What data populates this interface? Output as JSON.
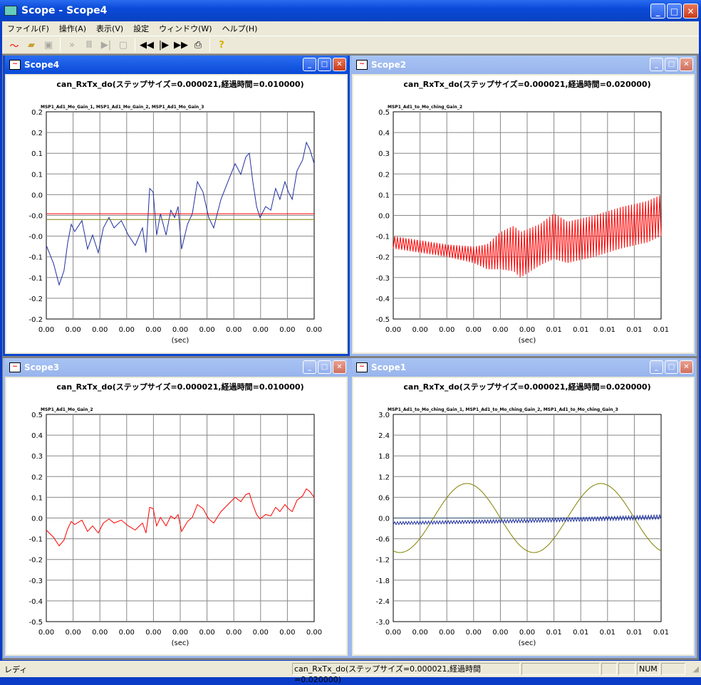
{
  "app": {
    "title": "Scope - Scope4"
  },
  "menu": [
    "ファイル(F)",
    "操作(A)",
    "表示(V)",
    "設定",
    "ウィンドウ(W)",
    "ヘルプ(H)"
  ],
  "toolbar": {
    "icons": [
      "scope-icon",
      "open-icon",
      "save-icon",
      "play-icon",
      "pause-icon",
      "step-icon",
      "stop-icon",
      "rewind-icon",
      "step-forward-icon",
      "fast-forward-icon",
      "print-icon",
      "help-icon"
    ]
  },
  "status": {
    "left": "レディ",
    "message": "can_RxTx_do(ステップサイズ=0.000021,経過時間=0.020000)",
    "num": "NUM"
  },
  "colors": {
    "blue": "#2030a0",
    "red": "#ff0000",
    "olive": "#808000"
  },
  "windows": [
    {
      "title": "Scope4",
      "active": true
    },
    {
      "title": "Scope2",
      "active": false
    },
    {
      "title": "Scope3",
      "active": false
    },
    {
      "title": "Scope1",
      "active": false
    }
  ],
  "chart_data": [
    {
      "type": "line",
      "window": "Scope4",
      "title": "can_RxTx_do(ステップサイズ=0.000021,経過時間=0.010000)",
      "legend": "MSP1_Ad1_Mo_Gain_1, MSP1_Ad1_Mo_Gain_2, MSP1_Ad1_Mo_Gain_3",
      "xlabel": "(sec)",
      "xlim": [
        0,
        0.01
      ],
      "ylim": [
        -0.2,
        0.2
      ],
      "yticks": [
        "0.2",
        "0.2",
        "0.1",
        "0.1",
        "0.0",
        "-0.0",
        "-0.0",
        "-0.1",
        "-0.1",
        "-0.2",
        "-0.2"
      ],
      "xticks": [
        "0.00",
        "0.00",
        "0.00",
        "0.00",
        "0.00",
        "0.00",
        "0.00",
        "0.00",
        "0.00",
        "0.00",
        "0.00"
      ],
      "series": [
        {
          "name": "Gain_1",
          "color": "#2030a0",
          "style": "line",
          "x": [
            0,
            0.00027,
            0.00048,
            0.00066,
            0.0008,
            0.00093,
            0.00106,
            0.00133,
            0.00154,
            0.00173,
            0.00194,
            0.00213,
            0.00234,
            0.00253,
            0.0028,
            0.00306,
            0.00332,
            0.00359,
            0.00372,
            0.00386,
            0.00399,
            0.00412,
            0.00426,
            0.00447,
            0.00465,
            0.00479,
            0.00492,
            0.00505,
            0.00527,
            0.00545,
            0.00564,
            0.00585,
            0.00606,
            0.00625,
            0.00638,
            0.00652,
            0.00678,
            0.00705,
            0.00726,
            0.00745,
            0.00758,
            0.00771,
            0.00785,
            0.00798,
            0.00819,
            0.00838,
            0.00856,
            0.00872,
            0.00891,
            0.00904,
            0.00918,
            0.00936,
            0.00957,
            0.00971,
            0.00984,
            0.01
          ],
          "y": [
            -0.058,
            -0.093,
            -0.134,
            -0.107,
            -0.052,
            -0.017,
            -0.031,
            -0.01,
            -0.065,
            -0.038,
            -0.072,
            -0.024,
            -0.004,
            -0.024,
            -0.01,
            -0.038,
            -0.058,
            -0.024,
            -0.072,
            0.052,
            0.045,
            -0.038,
            0.003,
            -0.038,
            0.01,
            -0.004,
            0.017,
            -0.065,
            -0.017,
            0.003,
            0.065,
            0.045,
            -0.004,
            -0.024,
            0.003,
            0.031,
            0.065,
            0.1,
            0.079,
            0.113,
            0.12,
            0.065,
            0.017,
            -0.004,
            0.017,
            0.01,
            0.052,
            0.031,
            0.065,
            0.045,
            0.031,
            0.086,
            0.107,
            0.141,
            0.127,
            0.1
          ]
        },
        {
          "name": "Gain_2",
          "color": "#ff0000",
          "style": "line",
          "x": [
            0,
            0.01
          ],
          "y": [
            0.003,
            0.003
          ]
        },
        {
          "name": "Gain_3",
          "color": "#808000",
          "style": "line",
          "x": [
            0,
            0.01
          ],
          "y": [
            -0.008,
            -0.008
          ]
        }
      ]
    },
    {
      "type": "line",
      "window": "Scope2",
      "title": "can_RxTx_do(ステップサイズ=0.000021,経過時間=0.020000)",
      "legend": "MSP1_Ad1_to_Mo_ching_Gain_2",
      "xlabel": "(sec)",
      "xlim": [
        0,
        0.02
      ],
      "ylim": [
        -0.5,
        0.5
      ],
      "yticks": [
        "0.5",
        "0.4",
        "0.3",
        "0.2",
        "0.1",
        "0.0",
        "-0.1",
        "-0.2",
        "-0.3",
        "-0.4",
        "-0.5"
      ],
      "xticks": [
        "0.00",
        "0.00",
        "0.00",
        "0.00",
        "0.00",
        "0.00",
        "0.01",
        "0.01",
        "0.01",
        "0.01",
        "0.01"
      ],
      "series": [
        {
          "name": "Gain_2",
          "color": "#ff0000",
          "style": "oscillation",
          "x": [
            0,
            0.002,
            0.004,
            0.006,
            0.007,
            0.008,
            0.009,
            0.0095,
            0.011,
            0.012,
            0.013,
            0.015,
            0.017,
            0.019,
            0.02
          ],
          "center": [
            -0.13,
            -0.15,
            -0.17,
            -0.19,
            -0.2,
            -0.17,
            -0.16,
            -0.19,
            -0.14,
            -0.1,
            -0.13,
            -0.1,
            -0.06,
            -0.03,
            -0.0
          ],
          "amplitude": [
            0.03,
            0.03,
            0.03,
            0.04,
            0.06,
            0.09,
            0.11,
            0.11,
            0.1,
            0.11,
            0.1,
            0.1,
            0.1,
            0.1,
            0.1
          ]
        }
      ]
    },
    {
      "type": "line",
      "window": "Scope3",
      "title": "can_RxTx_do(ステップサイズ=0.000021,経過時間=0.010000)",
      "legend": "MSP1_Ad1_Mo_Gain_2",
      "xlabel": "(sec)",
      "xlim": [
        0,
        0.01
      ],
      "ylim": [
        -0.5,
        0.5
      ],
      "yticks": [
        "0.5",
        "0.4",
        "0.3",
        "0.2",
        "0.1",
        "0.0",
        "-0.1",
        "-0.2",
        "-0.3",
        "-0.4",
        "-0.5"
      ],
      "xticks": [
        "0.00",
        "0.00",
        "0.00",
        "0.00",
        "0.00",
        "0.00",
        "0.00",
        "0.00",
        "0.00",
        "0.00",
        "0.00"
      ],
      "series": [
        {
          "name": "Gain_2",
          "color": "#ff0000",
          "style": "line",
          "x": [
            0,
            0.00027,
            0.00048,
            0.00066,
            0.0008,
            0.00093,
            0.00106,
            0.00133,
            0.00154,
            0.00173,
            0.00194,
            0.00213,
            0.00234,
            0.00253,
            0.0028,
            0.00306,
            0.00332,
            0.00359,
            0.00372,
            0.00386,
            0.00399,
            0.00412,
            0.00426,
            0.00447,
            0.00465,
            0.00479,
            0.00492,
            0.00505,
            0.00527,
            0.00545,
            0.00564,
            0.00585,
            0.00606,
            0.00625,
            0.00638,
            0.00652,
            0.00678,
            0.00705,
            0.00726,
            0.00745,
            0.00758,
            0.00771,
            0.00785,
            0.00798,
            0.00819,
            0.00838,
            0.00856,
            0.00872,
            0.00891,
            0.00904,
            0.00918,
            0.00936,
            0.00957,
            0.00971,
            0.00984,
            0.01
          ],
          "y": [
            -0.058,
            -0.093,
            -0.134,
            -0.107,
            -0.052,
            -0.017,
            -0.031,
            -0.01,
            -0.065,
            -0.038,
            -0.072,
            -0.024,
            -0.004,
            -0.024,
            -0.01,
            -0.038,
            -0.058,
            -0.024,
            -0.072,
            0.052,
            0.045,
            -0.038,
            0.003,
            -0.038,
            0.01,
            -0.004,
            0.017,
            -0.065,
            -0.017,
            0.003,
            0.065,
            0.045,
            -0.004,
            -0.024,
            0.003,
            0.031,
            0.065,
            0.1,
            0.079,
            0.113,
            0.12,
            0.065,
            0.017,
            -0.004,
            0.017,
            0.01,
            0.052,
            0.031,
            0.065,
            0.045,
            0.031,
            0.086,
            0.107,
            0.141,
            0.127,
            0.1
          ]
        }
      ]
    },
    {
      "type": "line",
      "window": "Scope1",
      "title": "can_RxTx_do(ステップサイズ=0.000021,経過時間=0.020000)",
      "legend": "MSP1_Ad1_to_Mo_ching_Gain_1, MSP1_Ad1_to_Mo_ching_Gain_2, MSP1_Ad1_to_Mo_ching_Gain_3",
      "xlabel": "(sec)",
      "xlim": [
        0,
        0.02
      ],
      "ylim": [
        -3,
        3
      ],
      "yticks": [
        "3.0",
        "2.4",
        "1.8",
        "1.2",
        "0.6",
        "0.0",
        "-0.6",
        "-1.2",
        "-1.8",
        "-2.4",
        "-3.0"
      ],
      "xticks": [
        "0.00",
        "0.00",
        "0.00",
        "0.00",
        "0.00",
        "0.00",
        "0.01",
        "0.01",
        "0.01",
        "0.01",
        "0.01"
      ],
      "series": [
        {
          "name": "Gain_1",
          "color": "#2a4a6a",
          "style": "line",
          "x": [
            0,
            0.02
          ],
          "y": [
            0,
            0
          ]
        },
        {
          "name": "Gain_2",
          "color": "#808000",
          "style": "sine",
          "amplitude": 1.0,
          "period": 0.01,
          "phase": 0.003
        },
        {
          "name": "Gain_3",
          "color": "#2030a0",
          "style": "oscillation",
          "x": [
            0,
            0.01,
            0.02
          ],
          "center": [
            -0.15,
            -0.08,
            0.03
          ],
          "amplitude": [
            0.04,
            0.05,
            0.06
          ]
        }
      ]
    }
  ]
}
